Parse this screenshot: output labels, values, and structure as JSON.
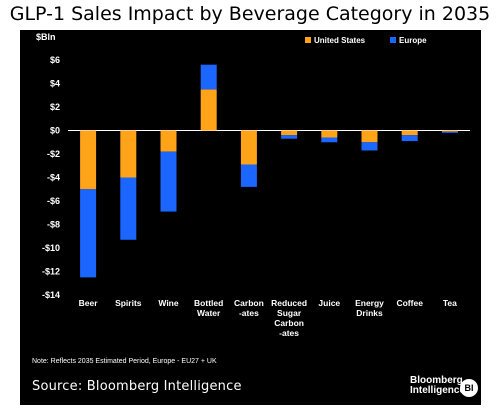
{
  "title": "GLP-1 Sales Impact by Beverage Category in 2035",
  "note": "Note: Reflects 2035 Estimated Period, Europe - EU27 + UK",
  "source": "Source: Bloomberg Intelligence",
  "brand": {
    "line1": "Bloomberg",
    "line2": "Intelligence",
    "badge": "BI"
  },
  "colors": {
    "background": "#000000",
    "us": "#FFA319",
    "europe": "#1A66FF",
    "text": "#FFFFFF",
    "axis": "#FFFFFF"
  },
  "chart_data": {
    "type": "bar",
    "stacked": true,
    "unit_label": "$Bln",
    "categories": [
      [
        "Beer"
      ],
      [
        "Spirits"
      ],
      [
        "Wine"
      ],
      [
        "Bottled",
        "Water"
      ],
      [
        "Carbon",
        "-ates"
      ],
      [
        "Reduced",
        "Sugar",
        "Carbon",
        "-ates"
      ],
      [
        "Juice"
      ],
      [
        "Energy",
        "Drinks"
      ],
      [
        "Coffee"
      ],
      [
        "Tea"
      ]
    ],
    "series": [
      {
        "name": "United States",
        "color": "#FFA319",
        "values": [
          -5.0,
          -4.0,
          -1.8,
          3.5,
          -2.9,
          -0.4,
          -0.6,
          -1.0,
          -0.4,
          -0.1
        ]
      },
      {
        "name": "Europe",
        "color": "#1A66FF",
        "values": [
          -7.5,
          -5.3,
          -5.1,
          2.1,
          -1.9,
          -0.3,
          -0.4,
          -0.7,
          -0.5,
          -0.1
        ]
      }
    ],
    "ylim": [
      -14,
      6
    ],
    "yticks": [
      6,
      4,
      2,
      0,
      -2,
      -4,
      -6,
      -8,
      -10,
      -12,
      -14
    ],
    "ytick_labels": [
      "$6",
      "$4",
      "$2",
      "$0",
      "-$2",
      "-$4",
      "-$6",
      "-$8",
      "-$10",
      "-$12",
      "-$14"
    ],
    "legend_position": "top-right",
    "grid": false
  }
}
